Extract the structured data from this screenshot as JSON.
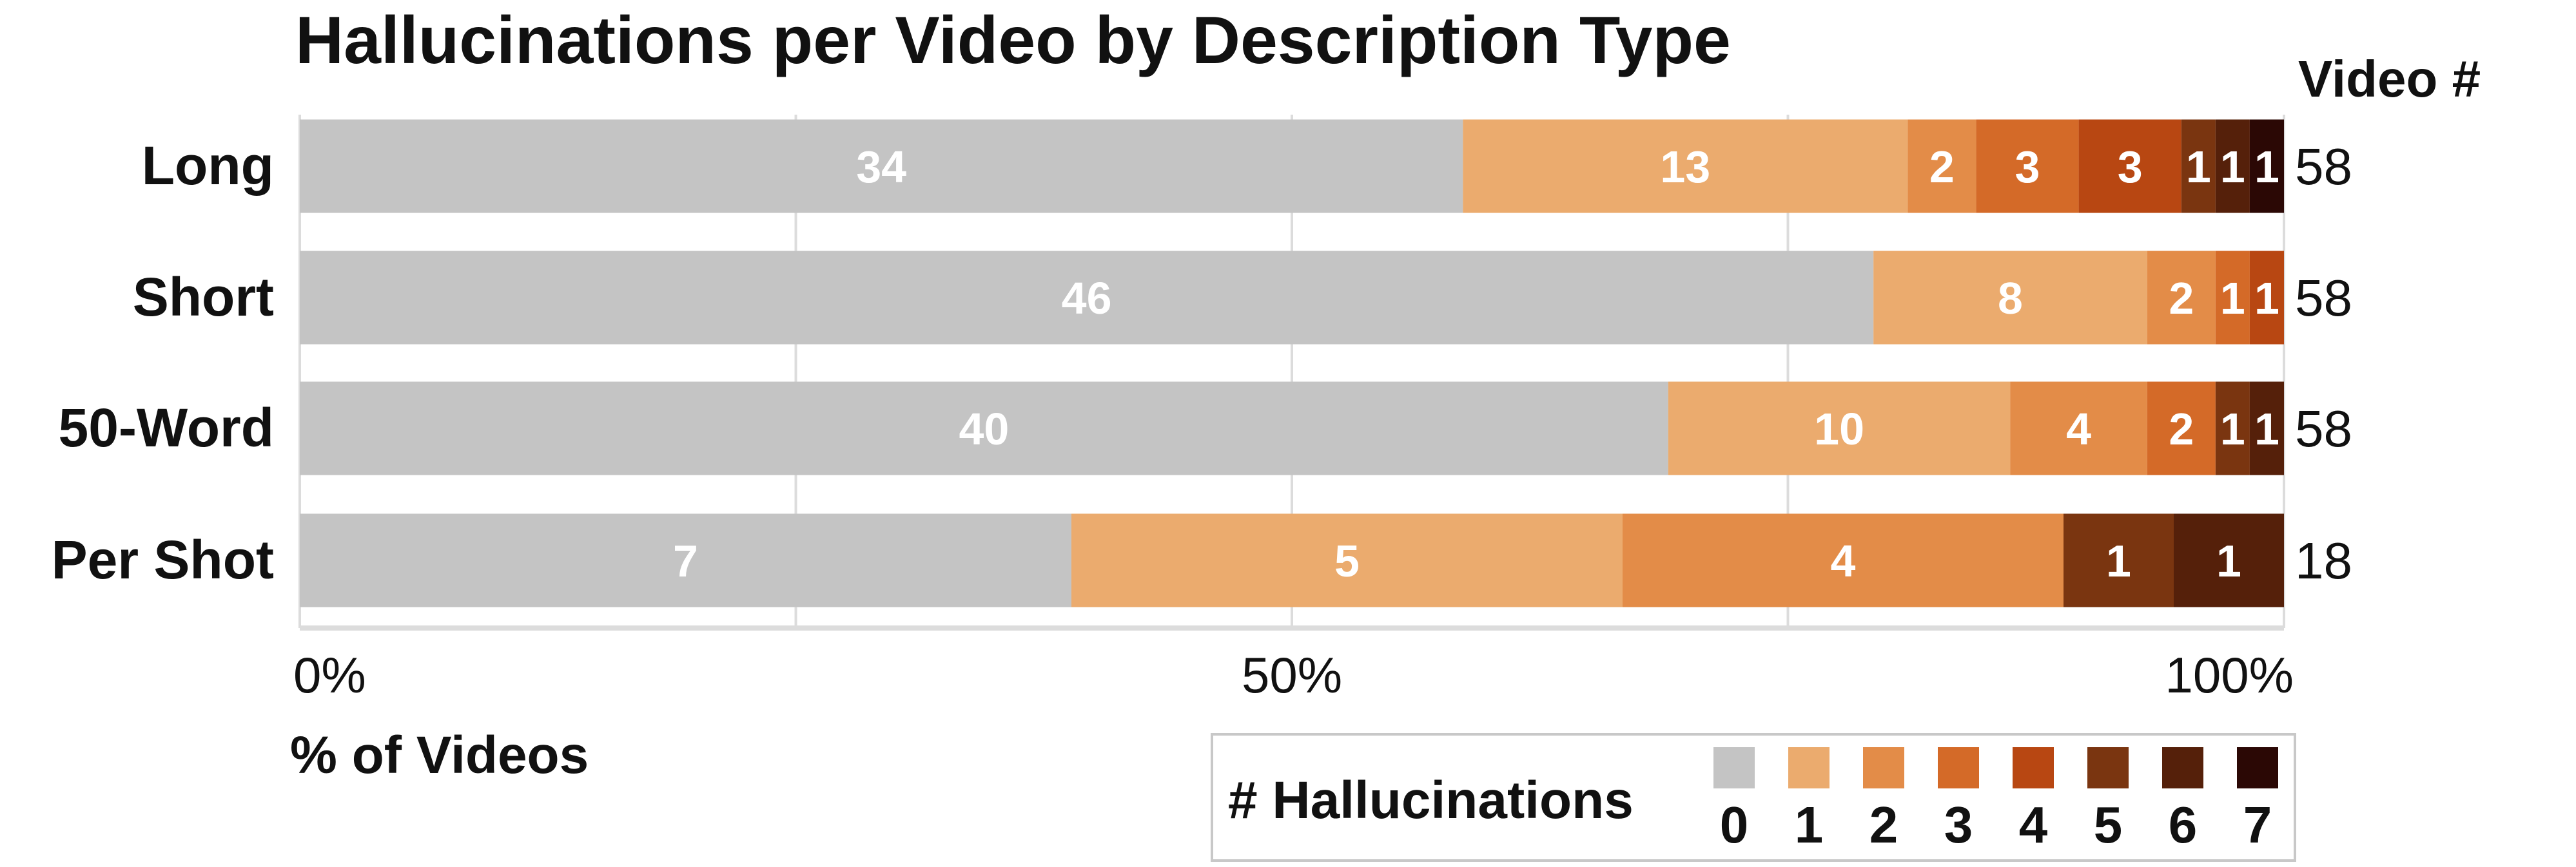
{
  "chart_data": {
    "type": "bar",
    "orientation": "horizontal",
    "stacked": true,
    "normalized": true,
    "title": "Hallucinations per Video by Description Type",
    "xlabel": "% of Videos",
    "xlim": [
      0,
      100
    ],
    "x_ticks": [
      "0%",
      "50%",
      "100%"
    ],
    "grid": true,
    "count_header": "Video #",
    "categories": [
      "Long",
      "Short",
      "50-Word",
      "Per Shot"
    ],
    "totals": [
      58,
      58,
      58,
      18
    ],
    "series": [
      {
        "name": "0",
        "color": "#c4c4c4",
        "values": [
          34,
          46,
          40,
          7
        ]
      },
      {
        "name": "1",
        "color": "#ebab6e",
        "values": [
          13,
          8,
          10,
          5
        ]
      },
      {
        "name": "2",
        "color": "#e38c48",
        "values": [
          2,
          2,
          4,
          4
        ]
      },
      {
        "name": "3",
        "color": "#d46a28",
        "values": [
          3,
          1,
          2,
          0
        ]
      },
      {
        "name": "4",
        "color": "#b84712",
        "values": [
          3,
          1,
          0,
          0
        ]
      },
      {
        "name": "5",
        "color": "#7a3510",
        "values": [
          1,
          0,
          1,
          1
        ]
      },
      {
        "name": "6",
        "color": "#55200a",
        "values": [
          1,
          0,
          1,
          1
        ]
      },
      {
        "name": "7",
        "color": "#2b0805",
        "values": [
          1,
          0,
          0,
          0
        ]
      }
    ],
    "legend": {
      "title": "# Hallucinations",
      "placement": "bottom-right"
    }
  }
}
